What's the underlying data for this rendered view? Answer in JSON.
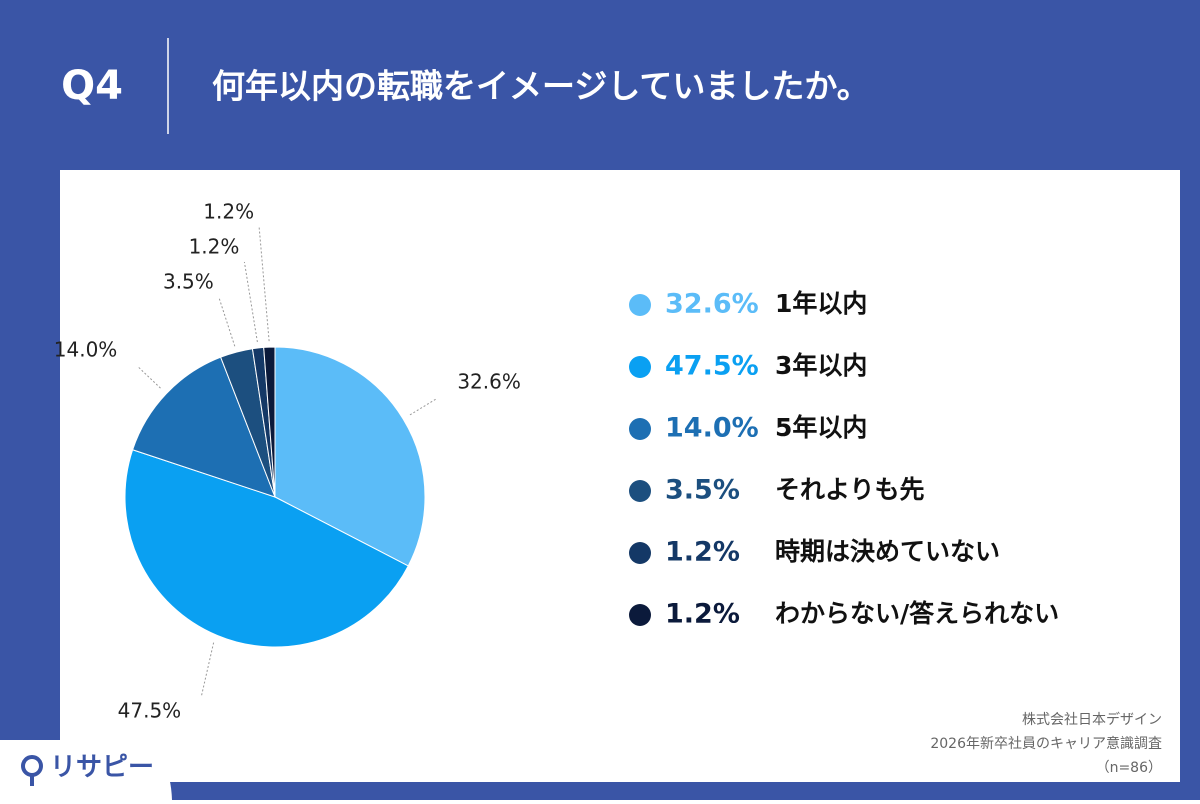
{
  "header": {
    "question": "Q4",
    "title": "何年以内の転職をイメージしていましたか。"
  },
  "chart_data": {
    "type": "pie",
    "categories": [
      "1年以内",
      "3年以内",
      "5年以内",
      "それよりも先",
      "時期は決めていない",
      "わからない/答えられない"
    ],
    "values": [
      32.6,
      47.5,
      14.0,
      3.5,
      1.2,
      1.2
    ],
    "value_labels": [
      "32.6%",
      "47.5%",
      "14.0%",
      "3.5%",
      "1.2%",
      "1.2%"
    ],
    "colors": [
      "#5bbcf8",
      "#0aa0f2",
      "#1d6fb3",
      "#1c4f7f",
      "#143866",
      "#0b1a3b"
    ]
  },
  "footer": {
    "brand": "リサピー",
    "source": [
      "株式会社日本デザイン",
      "2026年新卒社員のキャリア意識調査",
      "（n=86）"
    ]
  }
}
